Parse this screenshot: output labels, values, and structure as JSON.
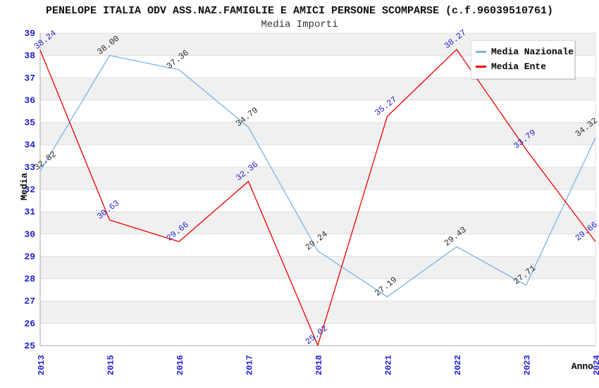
{
  "header": {
    "title": "PENELOPE ITALIA ODV ASS.NAZ.FAMIGLIE E AMICI PERSONE SCOMPARSE (c.f.96039510761)",
    "subtitle": "Media Importi"
  },
  "legend": {
    "items": [
      {
        "label": "Media Nazionale",
        "color": "#7db2e8"
      },
      {
        "label": "Media Ente",
        "color": "#ee0000"
      }
    ]
  },
  "axes": {
    "y_title": "Media",
    "x_title": "Anno",
    "y_ticks": [
      "39",
      "38",
      "37",
      "36",
      "35",
      "34",
      "33",
      "32",
      "31",
      "30",
      "29",
      "28",
      "27",
      "26",
      "25"
    ],
    "x_ticks": [
      "2013",
      "2015",
      "2016",
      "2017",
      "2018",
      "2021",
      "2022",
      "2023",
      "2024"
    ]
  },
  "style": {
    "band_gray": "#f0f0f0",
    "band_white": "#ffffff",
    "grid_color": "#e0e0e0",
    "axis_line_color": "#aaaaaa",
    "tick_text_color": "#1c1cd8",
    "axis_title_color": "#000000"
  },
  "chart_data": {
    "type": "line",
    "title": "PENELOPE ITALIA ODV ASS.NAZ.FAMIGLIE E AMICI PERSONE SCOMPARSE (c.f.96039510761)",
    "subtitle": "Media Importi",
    "xlabel": "Anno",
    "ylabel": "Media",
    "x": [
      "2013",
      "2015",
      "2016",
      "2017",
      "2018",
      "2021",
      "2022",
      "2023",
      "2024"
    ],
    "ylim": [
      25,
      39
    ],
    "ytick_step": 1,
    "grid": "horizontal alternating bands, gray on even-to-odd unit intervals",
    "legend_position": "top-right",
    "point_labels": "each point labeled with value, 2 decimals, rotated ~38deg",
    "series": [
      {
        "name": "Media Nazionale",
        "color": "#7db2e8",
        "label_color": "#2b2b2b",
        "values": [
          32.82,
          38.0,
          37.36,
          34.79,
          29.24,
          27.19,
          29.43,
          27.71,
          34.32
        ]
      },
      {
        "name": "Media Ente",
        "color": "#ee0000",
        "label_color": "#2424cc",
        "values": [
          38.24,
          30.63,
          29.66,
          32.36,
          25.02,
          35.27,
          38.27,
          33.79,
          29.66
        ]
      }
    ]
  }
}
